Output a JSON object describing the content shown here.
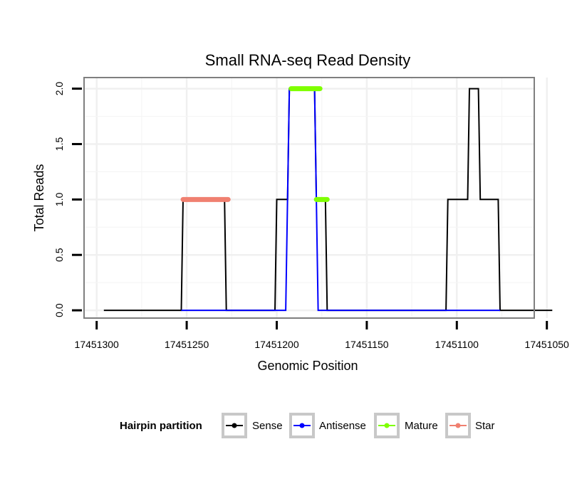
{
  "chart_data": {
    "type": "line",
    "title": "Small RNA-seq Read Density",
    "xlabel": "Genomic Position",
    "ylabel": "Total Reads",
    "x_reversed": true,
    "xlim": [
      17451307,
      17451057
    ],
    "ylim": [
      -0.07,
      2.1
    ],
    "x_ticks": [
      17451300,
      17451250,
      17451200,
      17451150,
      17451100,
      17451050
    ],
    "x_tick_labels": [
      "17451300",
      "17451250",
      "17451200",
      "17451150",
      "17451100",
      "17451050"
    ],
    "y_ticks": [
      0.0,
      0.5,
      1.0,
      1.5,
      2.0
    ],
    "y_tick_labels": [
      "0.0",
      "0.5",
      "1.0",
      "1.5",
      "2.0"
    ],
    "grid": true,
    "series": [
      {
        "name": "Sense",
        "color": "#000000",
        "points": [
          [
            17451296,
            0
          ],
          [
            17451253,
            0
          ],
          [
            17451252,
            1
          ],
          [
            17451229,
            1
          ],
          [
            17451228,
            0
          ],
          [
            17451201,
            0
          ],
          [
            17451200,
            1
          ],
          [
            17451194,
            1
          ],
          [
            17451193,
            2
          ],
          [
            17451179,
            2
          ],
          [
            17451178,
            1
          ],
          [
            17451173,
            1
          ],
          [
            17451172,
            0
          ],
          [
            17451106,
            0
          ],
          [
            17451105,
            1
          ],
          [
            17451094,
            1
          ],
          [
            17451093,
            2
          ],
          [
            17451088,
            2
          ],
          [
            17451087,
            1
          ],
          [
            17451077,
            1
          ],
          [
            17451076,
            0
          ],
          [
            17451047,
            0
          ]
        ]
      },
      {
        "name": "Antisense",
        "color": "#0000ff",
        "points": [
          [
            17451253,
            0
          ],
          [
            17451228,
            0
          ],
          [
            17451201,
            0
          ],
          [
            17451195,
            0
          ],
          [
            17451193,
            2
          ],
          [
            17451179,
            2
          ],
          [
            17451177,
            0
          ],
          [
            17451172,
            0
          ],
          [
            17451106,
            0
          ],
          [
            17451076,
            0
          ]
        ]
      },
      {
        "name": "Mature",
        "color": "#7fff00",
        "segments": [
          {
            "x_start": 17451192,
            "x_end": 17451176,
            "y": 2
          },
          {
            "x_start": 17451178,
            "x_end": 17451172,
            "y": 1
          }
        ]
      },
      {
        "name": "Star",
        "color": "#f08070",
        "segments": [
          {
            "x_start": 17451252,
            "x_end": 17451227,
            "y": 1
          }
        ]
      }
    ],
    "legend": {
      "title": "Hairpin partition",
      "position": "bottom",
      "entries": [
        {
          "label": "Sense",
          "color": "#000000"
        },
        {
          "label": "Antisense",
          "color": "#0000ff"
        },
        {
          "label": "Mature",
          "color": "#7fff00"
        },
        {
          "label": "Star",
          "color": "#f08070"
        }
      ]
    }
  }
}
